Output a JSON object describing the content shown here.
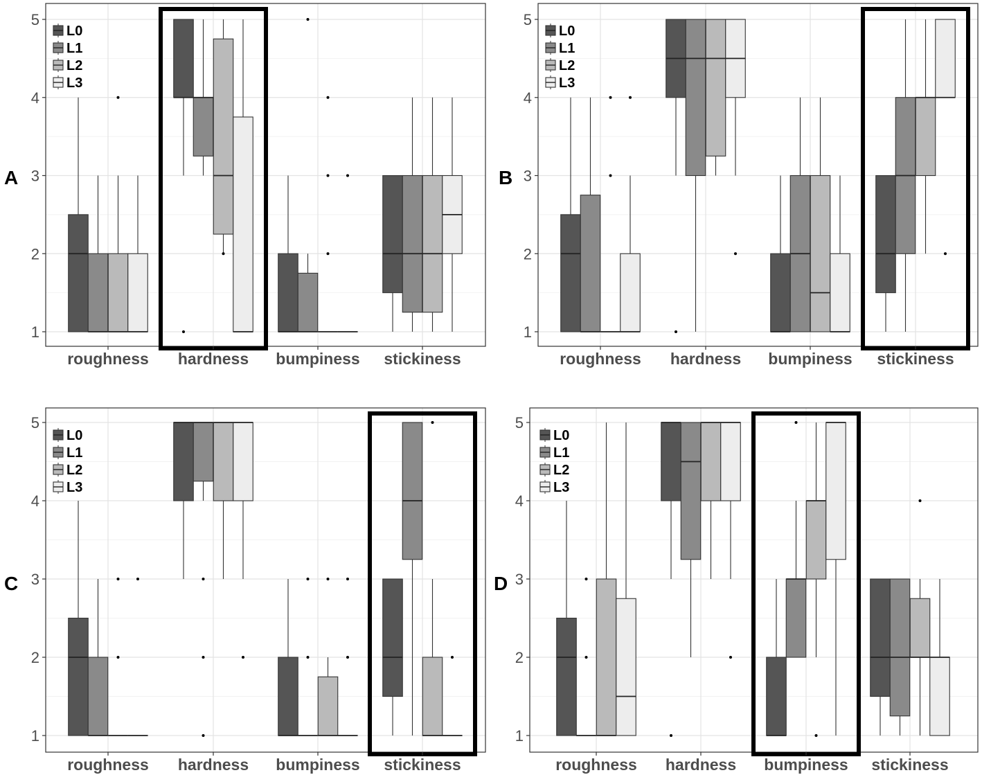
{
  "figure_colors": {
    "L0": "#555555",
    "L1": "#8a8a8a",
    "L2": "#bababa",
    "L3": "#ededed"
  },
  "chart_data": [
    {
      "type": "box",
      "panel": "A",
      "categories": [
        "roughness",
        "hardness",
        "bumpiness",
        "stickiness"
      ],
      "levels": [
        "L0",
        "L1",
        "L2",
        "L3"
      ],
      "ylim": [
        1,
        5
      ],
      "yticks": [
        "1",
        "2",
        "3",
        "4",
        "5"
      ],
      "grid": true,
      "legend": "top-left",
      "highlight": "hardness",
      "boxes": [
        [
          [
            1,
            1,
            2,
            2.5,
            4,
            []
          ],
          [
            1,
            1,
            1,
            2,
            3,
            []
          ],
          [
            1,
            1,
            1,
            2,
            3,
            [
              4
            ]
          ],
          [
            1,
            1,
            1,
            2,
            3,
            []
          ]
        ],
        [
          [
            3,
            4,
            4,
            5,
            5,
            [
              1
            ]
          ],
          [
            3,
            3.25,
            4,
            4,
            5,
            []
          ],
          [
            2,
            2.25,
            3,
            4.75,
            5,
            [
              2
            ]
          ],
          [
            1,
            1,
            1,
            3.75,
            5,
            []
          ]
        ],
        [
          [
            1,
            1,
            1,
            2,
            3,
            []
          ],
          [
            1,
            1,
            1,
            1.75,
            2,
            [
              5
            ]
          ],
          [
            1,
            1,
            1,
            1,
            1,
            [
              2,
              3,
              4
            ]
          ],
          [
            1,
            1,
            1,
            1,
            1,
            [
              3
            ]
          ]
        ],
        [
          [
            1,
            1.5,
            2,
            3,
            3,
            []
          ],
          [
            1,
            1.25,
            2,
            3,
            4,
            []
          ],
          [
            1,
            1.25,
            2,
            3,
            4,
            []
          ],
          [
            1,
            2,
            2.5,
            3,
            4,
            []
          ]
        ]
      ]
    },
    {
      "type": "box",
      "panel": "B",
      "categories": [
        "roughness",
        "hardness",
        "bumpiness",
        "stickiness"
      ],
      "levels": [
        "L0",
        "L1",
        "L2",
        "L3"
      ],
      "ylim": [
        1,
        5
      ],
      "yticks": [
        "1",
        "2",
        "3",
        "4",
        "5"
      ],
      "grid": true,
      "legend": "top-left",
      "highlight": "stickiness",
      "boxes": [
        [
          [
            1,
            1,
            2,
            2.5,
            4,
            []
          ],
          [
            1,
            1,
            1,
            2.75,
            4,
            []
          ],
          [
            1,
            1,
            1,
            1,
            1,
            [
              3,
              4
            ]
          ],
          [
            1,
            1,
            1,
            2,
            3,
            [
              4
            ]
          ]
        ],
        [
          [
            3,
            4,
            4.5,
            5,
            5,
            [
              1
            ]
          ],
          [
            1,
            3,
            4.5,
            5,
            5,
            []
          ],
          [
            3,
            3.25,
            4.5,
            5,
            5,
            []
          ],
          [
            3,
            4,
            4.5,
            5,
            5,
            [
              2
            ]
          ]
        ],
        [
          [
            1,
            1,
            1,
            2,
            3,
            []
          ],
          [
            1,
            1,
            2,
            3,
            4,
            []
          ],
          [
            1,
            1,
            1.5,
            3,
            4,
            []
          ],
          [
            1,
            1,
            1,
            2,
            3,
            []
          ]
        ],
        [
          [
            1,
            1.5,
            2,
            3,
            3,
            []
          ],
          [
            1,
            2,
            3,
            4,
            5,
            []
          ],
          [
            2,
            3,
            4,
            4,
            5,
            []
          ],
          [
            4,
            4,
            4,
            5,
            5,
            [
              2
            ]
          ]
        ]
      ]
    },
    {
      "type": "box",
      "panel": "C",
      "categories": [
        "roughness",
        "hardness",
        "bumpiness",
        "stickiness"
      ],
      "levels": [
        "L0",
        "L1",
        "L2",
        "L3"
      ],
      "ylim": [
        1,
        5
      ],
      "yticks": [
        "1",
        "2",
        "3",
        "4",
        "5"
      ],
      "grid": true,
      "legend": "top-left",
      "highlight": "stickiness",
      "boxes": [
        [
          [
            1,
            1,
            2,
            2.5,
            4,
            []
          ],
          [
            1,
            1,
            1,
            2,
            3,
            []
          ],
          [
            1,
            1,
            1,
            1,
            1,
            [
              2,
              3
            ]
          ],
          [
            1,
            1,
            1,
            1,
            1,
            [
              3
            ]
          ]
        ],
        [
          [
            3,
            4,
            5,
            5,
            5,
            []
          ],
          [
            4,
            4.25,
            5,
            5,
            5,
            [
              1,
              2,
              3
            ]
          ],
          [
            3,
            4,
            5,
            5,
            5,
            []
          ],
          [
            3,
            4,
            5,
            5,
            5,
            [
              2
            ]
          ]
        ],
        [
          [
            1,
            1,
            1,
            2,
            3,
            []
          ],
          [
            1,
            1,
            1,
            1,
            1,
            [
              2,
              3
            ]
          ],
          [
            1,
            1,
            1,
            1.75,
            2,
            [
              3
            ]
          ],
          [
            1,
            1,
            1,
            1,
            1,
            [
              2,
              3
            ]
          ]
        ],
        [
          [
            1,
            1.5,
            2,
            3,
            3,
            []
          ],
          [
            1,
            3.25,
            4,
            5,
            5,
            []
          ],
          [
            1,
            1,
            1,
            2,
            3,
            [
              5
            ]
          ],
          [
            1,
            1,
            1,
            1,
            1,
            [
              2
            ]
          ]
        ]
      ]
    },
    {
      "type": "box",
      "panel": "D",
      "categories": [
        "roughness",
        "hardness",
        "bumpiness",
        "stickiness"
      ],
      "levels": [
        "L0",
        "L1",
        "L2",
        "L3"
      ],
      "ylim": [
        1,
        5
      ],
      "yticks": [
        "1",
        "2",
        "3",
        "4",
        "5"
      ],
      "grid": true,
      "legend": "top-left",
      "highlight": "bumpiness",
      "boxes": [
        [
          [
            1,
            1,
            2,
            2.5,
            4,
            []
          ],
          [
            1,
            1,
            1,
            1,
            1,
            [
              2,
              3
            ]
          ],
          [
            1,
            1,
            1,
            3,
            5,
            []
          ],
          [
            1,
            1,
            1.5,
            2.75,
            5,
            []
          ]
        ],
        [
          [
            3,
            4,
            5,
            5,
            5,
            [
              1
            ]
          ],
          [
            2,
            3.25,
            4.5,
            5,
            5,
            []
          ],
          [
            3,
            4,
            5,
            5,
            5,
            []
          ],
          [
            3,
            4,
            5,
            5,
            5,
            [
              2
            ]
          ]
        ],
        [
          [
            1,
            1,
            1,
            2,
            3,
            []
          ],
          [
            2,
            2,
            3,
            3,
            4,
            [
              5
            ]
          ],
          [
            2,
            3,
            4,
            4,
            5,
            [
              1
            ]
          ],
          [
            1,
            3.25,
            5,
            5,
            5,
            []
          ]
        ],
        [
          [
            1,
            1.5,
            2,
            3,
            3,
            []
          ],
          [
            1,
            1.25,
            2,
            3,
            3,
            []
          ],
          [
            1,
            2,
            2,
            2.75,
            3,
            [
              4
            ]
          ],
          [
            1,
            1,
            2,
            2,
            3,
            []
          ]
        ]
      ]
    }
  ]
}
